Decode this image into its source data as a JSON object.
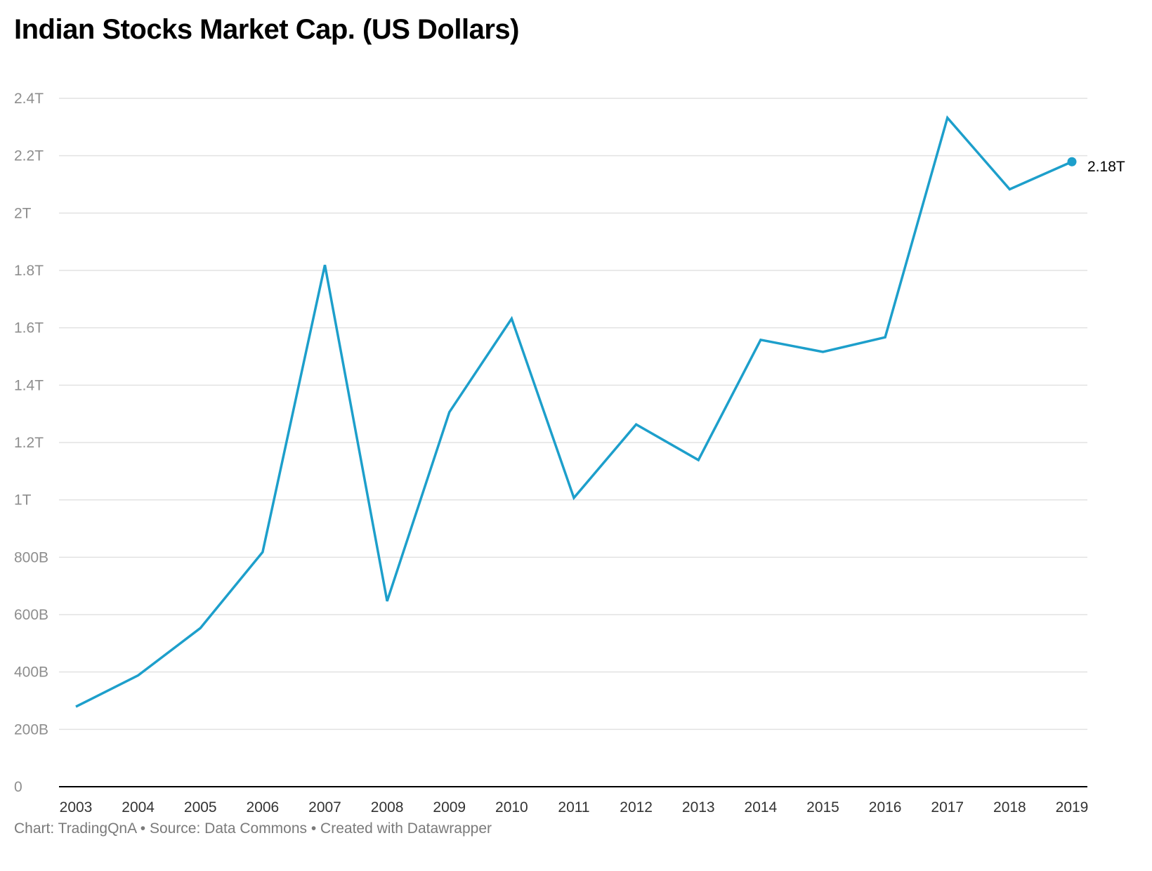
{
  "title": "Indian Stocks Market Cap. (US Dollars)",
  "footer": "Chart: TradingQnA • Source: Data Commons • Created with Datawrapper",
  "chart_data": {
    "type": "line",
    "title": "Indian Stocks Market Cap. (US Dollars)",
    "xlabel": "",
    "ylabel": "",
    "x": [
      "2003",
      "2004",
      "2005",
      "2006",
      "2007",
      "2008",
      "2009",
      "2010",
      "2011",
      "2012",
      "2013",
      "2014",
      "2015",
      "2016",
      "2017",
      "2018",
      "2019"
    ],
    "series": [
      {
        "values": [
          279,
          388,
          553,
          818,
          1819,
          647,
          1306,
          1632,
          1007,
          1263,
          1139,
          1558,
          1516,
          1567,
          2332,
          2083,
          2179
        ]
      }
    ],
    "units": "billion USD",
    "ylim": [
      0,
      2400
    ],
    "yticks": [
      0,
      200,
      400,
      600,
      800,
      1000,
      1200,
      1400,
      1600,
      1800,
      2000,
      2200,
      2400
    ],
    "ytick_labels": [
      "0",
      "200B",
      "400B",
      "600B",
      "800B",
      "1T",
      "1.2T",
      "1.4T",
      "1.6T",
      "1.8T",
      "2T",
      "2.2T",
      "2.4T"
    ],
    "end_label": "2.18T",
    "grid": true,
    "line_color": "#1d9fcb",
    "grid_color": "#e2e2e2"
  }
}
